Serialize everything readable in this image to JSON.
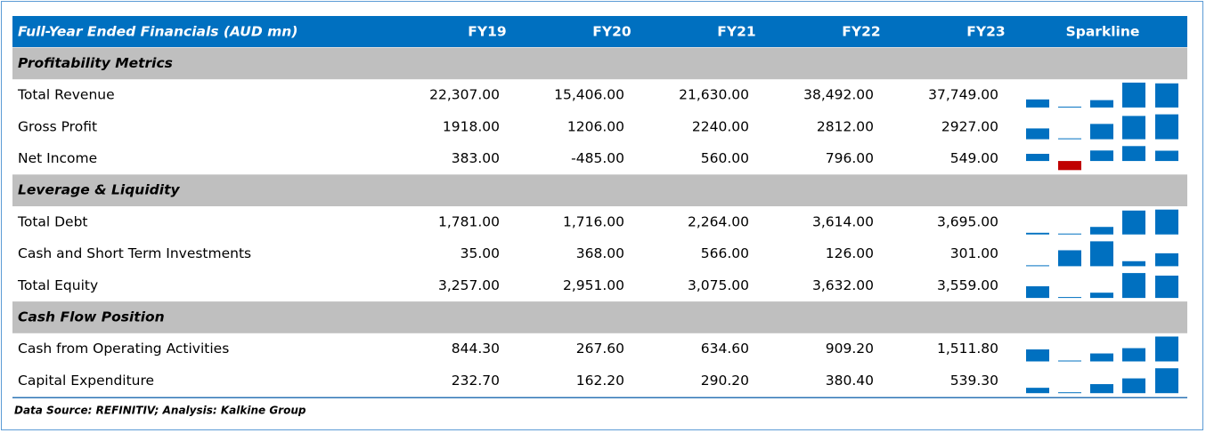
{
  "table": {
    "header": [
      "Full-Year Ended Financials (AUD mn)",
      "FY19",
      "FY20",
      "FY21",
      "FY22",
      "FY23",
      "Sparkline"
    ],
    "sections": [
      {
        "title": "Profitability Metrics",
        "rows": [
          {
            "label": "Total Revenue",
            "values": [
              22307,
              15406,
              21630,
              38492,
              37749
            ],
            "value_labels": [
              "22,307.00",
              "15,406.00",
              "21,630.00",
              "38,492.00",
              "37,749.00"
            ]
          },
          {
            "label": "Gross Profit",
            "values": [
              1918,
              1206,
              2240,
              2812,
              2927
            ],
            "value_labels": [
              "1918.00",
              "1206.00",
              "2240.00",
              "2812.00",
              "2927.00"
            ]
          },
          {
            "label": "Net Income",
            "values": [
              383,
              -485,
              560,
              796,
              549
            ],
            "value_labels": [
              "383.00",
              "-485.00",
              "560.00",
              "796.00",
              "549.00"
            ]
          }
        ]
      },
      {
        "title": "Leverage & Liquidity",
        "rows": [
          {
            "label": "Total Debt",
            "values": [
              1781,
              1716,
              2264,
              3614,
              3695
            ],
            "value_labels": [
              "1,781.00",
              "1,716.00",
              "2,264.00",
              "3,614.00",
              "3,695.00"
            ]
          },
          {
            "label": "Cash and Short Term Investments",
            "values": [
              35,
              368,
              566,
              126,
              301
            ],
            "value_labels": [
              "35.00",
              "368.00",
              "566.00",
              "126.00",
              "301.00"
            ]
          },
          {
            "label": "Total Equity",
            "values": [
              3257,
              2951,
              3075,
              3632,
              3559
            ],
            "value_labels": [
              "3,257.00",
              "2,951.00",
              "3,075.00",
              "3,632.00",
              "3,559.00"
            ]
          }
        ]
      },
      {
        "title": "Cash Flow Position",
        "rows": [
          {
            "label": "Cash from Operating Activities",
            "values": [
              844.3,
              267.6,
              634.6,
              909.2,
              1511.8
            ],
            "value_labels": [
              "844.30",
              "267.60",
              "634.60",
              "909.20",
              "1,511.80"
            ]
          },
          {
            "label": "Capital Expenditure",
            "values": [
              232.7,
              162.2,
              290.2,
              380.4,
              539.3
            ],
            "value_labels": [
              "232.70",
              "162.20",
              "290.20",
              "380.40",
              "539.30"
            ]
          }
        ]
      }
    ],
    "bar_color": "#0070c0",
    "negative_color": "#c00000"
  },
  "footnote": "Data Source: REFINITIV; Analysis: Kalkine Group"
}
